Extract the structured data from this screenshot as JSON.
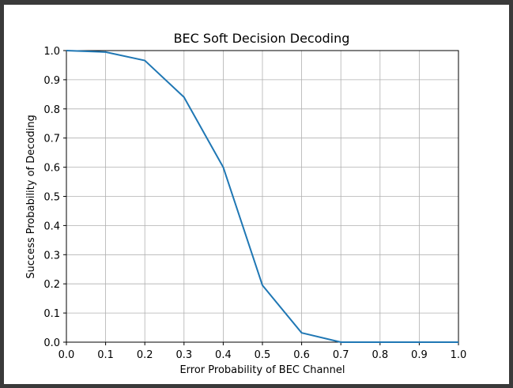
{
  "chart_data": {
    "type": "line",
    "title": "BEC Soft Decision Decoding",
    "xlabel": "Error Probability of BEC Channel",
    "ylabel": "Success Probability of Decoding",
    "xlim": [
      0.0,
      1.0
    ],
    "ylim": [
      0.0,
      1.0
    ],
    "xticks": [
      "0.0",
      "0.1",
      "0.2",
      "0.3",
      "0.4",
      "0.5",
      "0.6",
      "0.7",
      "0.8",
      "0.9",
      "1.0"
    ],
    "yticks": [
      "0.0",
      "0.1",
      "0.2",
      "0.3",
      "0.4",
      "0.5",
      "0.6",
      "0.7",
      "0.8",
      "0.9",
      "1.0"
    ],
    "grid": true,
    "series": [
      {
        "color": "#1f77b4",
        "x": [
          0.0,
          0.1,
          0.2,
          0.3,
          0.4,
          0.5,
          0.6,
          0.7,
          0.8,
          0.9,
          1.0
        ],
        "y": [
          1.0,
          0.995,
          0.966,
          0.84,
          0.6,
          0.195,
          0.032,
          0.0,
          0.0,
          0.0,
          0.0
        ]
      }
    ]
  }
}
